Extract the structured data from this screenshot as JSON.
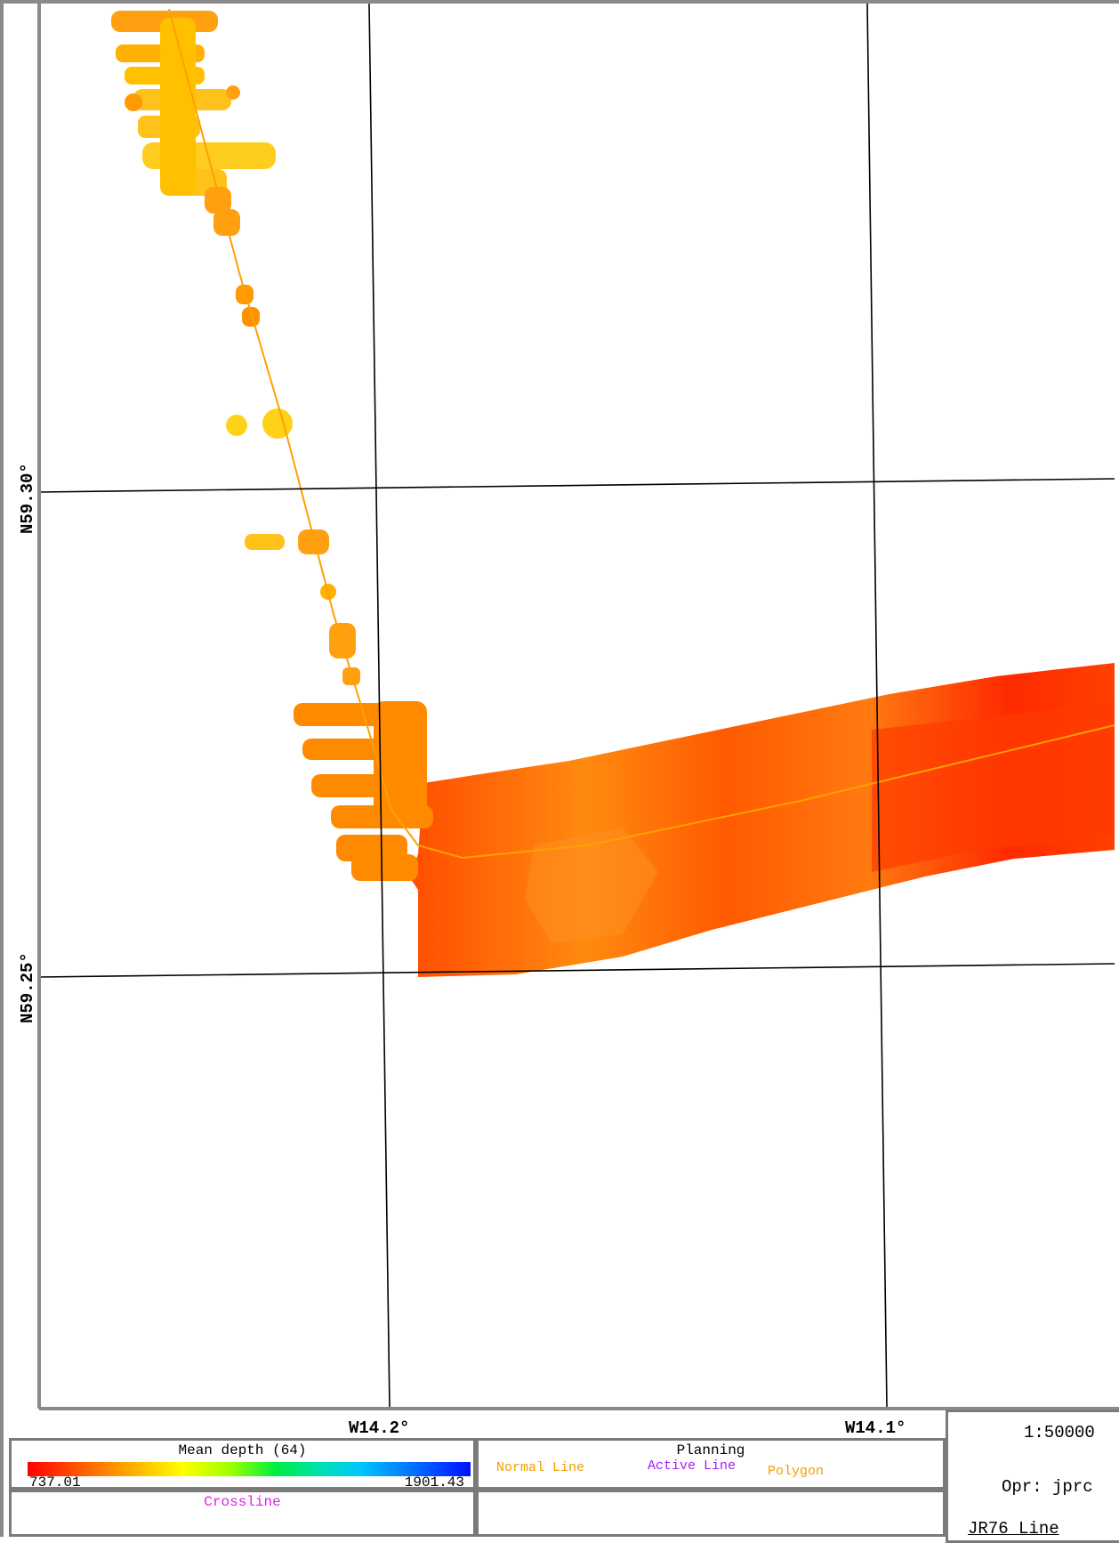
{
  "map": {
    "grid": {
      "latitude_labels": [
        "N59.30°",
        "N59.25°"
      ],
      "longitude_labels": [
        "W14.2°",
        "W14.1°"
      ]
    },
    "colors": {
      "swath_shallow": "#ffd21a",
      "swath_mid": "#ff8c00",
      "swath_deep": "#ff2800",
      "track_line": "#ffa000",
      "grid_line": "#000000",
      "frame": "#8a8a8a"
    }
  },
  "legend": {
    "title": "Mean depth (64)",
    "min_value": "737.01",
    "max_value": "1901.43",
    "crossline_label": "Crossline",
    "crossline_color": "#e020e0"
  },
  "planning": {
    "title": "Planning",
    "items": [
      {
        "label": "Normal Line",
        "color": "#f0a000"
      },
      {
        "label": "Active Line",
        "color": "#a020f0"
      },
      {
        "label": "Polygon",
        "color": "#f0a000"
      }
    ]
  },
  "info": {
    "scale": "1:50000",
    "operator": "Opr: jprc",
    "line": "JR76 Line"
  }
}
